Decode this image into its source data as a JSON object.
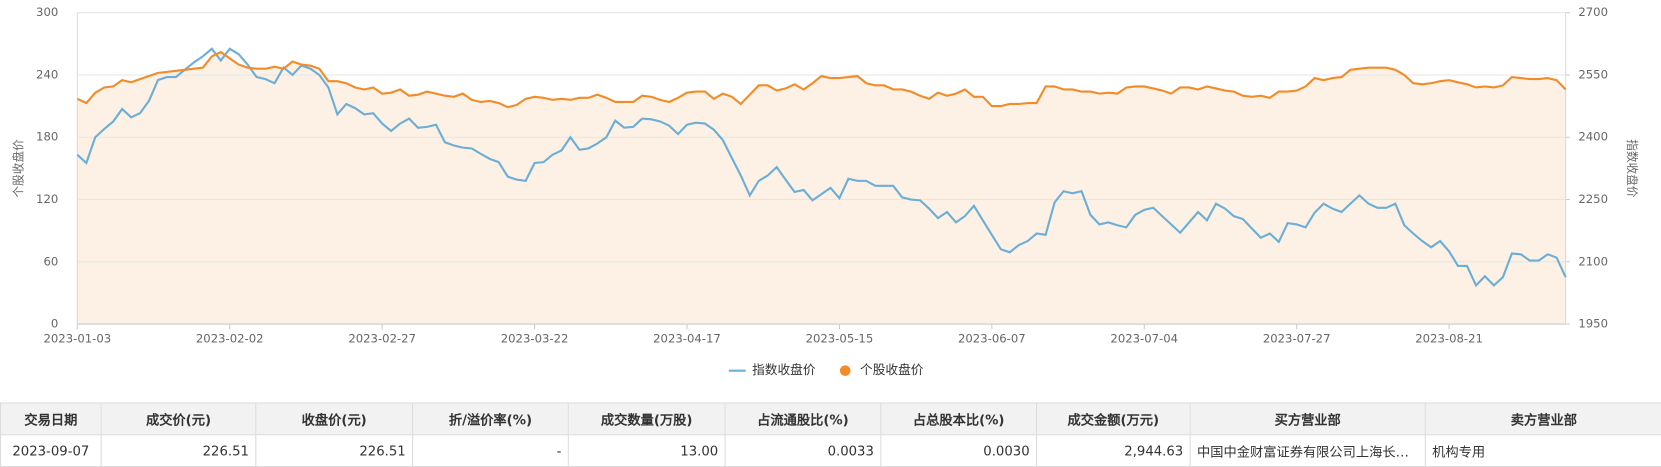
{
  "chart_data": {
    "type": "line",
    "ylabel": "个股收盘价",
    "y2label": "指数收盘价",
    "categories": [
      "2023-01-03",
      null,
      null,
      null,
      null,
      null,
      null,
      null,
      null,
      null,
      null,
      null,
      null,
      null,
      null,
      null,
      null,
      "2023-02-02",
      null,
      null,
      null,
      null,
      null,
      null,
      null,
      null,
      null,
      null,
      null,
      null,
      null,
      null,
      null,
      null,
      "2023-02-27",
      null,
      null,
      null,
      null,
      null,
      null,
      null,
      null,
      null,
      null,
      null,
      null,
      null,
      null,
      null,
      null,
      "2023-03-22",
      null,
      null,
      null,
      null,
      null,
      null,
      null,
      null,
      null,
      null,
      null,
      null,
      null,
      null,
      null,
      null,
      "2023-04-17",
      null,
      null,
      null,
      null,
      null,
      null,
      null,
      null,
      null,
      null,
      null,
      null,
      null,
      null,
      null,
      null,
      "2023-05-15",
      null,
      null,
      null,
      null,
      null,
      null,
      null,
      null,
      null,
      null,
      null,
      null,
      null,
      null,
      null,
      null,
      "2023-06-07",
      null,
      null,
      null,
      null,
      null,
      null,
      null,
      null,
      null,
      null,
      null,
      null,
      null,
      null,
      null,
      null,
      "2023-07-04",
      null,
      null,
      null,
      null,
      null,
      null,
      null,
      null,
      null,
      null,
      null,
      null,
      null,
      null,
      null,
      null,
      "2023-07-27",
      null,
      null,
      null,
      null,
      null,
      null,
      null,
      null,
      null,
      null,
      null,
      null,
      null,
      null,
      null,
      null,
      "2023-08-21",
      null,
      null,
      null,
      null,
      null,
      null,
      null,
      null,
      null,
      null,
      null,
      null,
      null
    ],
    "series": [
      {
        "name": "指数收盘价",
        "color": "#6baed6",
        "axis": "y2",
        "values": [
          2358,
          2338,
          2400,
          2420,
          2438,
          2468,
          2448,
          2458,
          2488,
          2538,
          2545,
          2545,
          2563,
          2580,
          2595,
          2613,
          2585,
          2613,
          2600,
          2575,
          2545,
          2540,
          2530,
          2568,
          2550,
          2573,
          2565,
          2550,
          2520,
          2455,
          2480,
          2470,
          2455,
          2458,
          2433,
          2415,
          2433,
          2445,
          2423,
          2425,
          2430,
          2388,
          2380,
          2375,
          2373,
          2360,
          2348,
          2340,
          2305,
          2298,
          2295,
          2338,
          2340,
          2358,
          2368,
          2400,
          2370,
          2373,
          2385,
          2400,
          2440,
          2423,
          2425,
          2445,
          2443,
          2438,
          2428,
          2408,
          2430,
          2435,
          2433,
          2418,
          2393,
          2350,
          2308,
          2260,
          2295,
          2308,
          2328,
          2298,
          2268,
          2273,
          2248,
          2263,
          2278,
          2253,
          2300,
          2295,
          2295,
          2283,
          2283,
          2283,
          2255,
          2250,
          2248,
          2228,
          2205,
          2220,
          2195,
          2210,
          2235,
          2200,
          2165,
          2130,
          2123,
          2140,
          2150,
          2168,
          2165,
          2243,
          2270,
          2265,
          2270,
          2213,
          2190,
          2195,
          2188,
          2183,
          2213,
          2225,
          2230,
          2210,
          2190,
          2170,
          2195,
          2220,
          2200,
          2240,
          2228,
          2210,
          2203,
          2180,
          2158,
          2168,
          2148,
          2193,
          2190,
          2183,
          2218,
          2240,
          2228,
          2220,
          2240,
          2260,
          2240,
          2230,
          2230,
          2240,
          2188,
          2168,
          2150,
          2135,
          2150,
          2125,
          2090,
          2090,
          2043,
          2065,
          2043,
          2063,
          2120,
          2118,
          2103,
          2103,
          2118,
          2110,
          2063
        ]
      },
      {
        "name": "个股收盘价",
        "color": "#f28c28",
        "area": true,
        "values": [
          217,
          213,
          223,
          228,
          229,
          235,
          233,
          236,
          239,
          242,
          243,
          244,
          245,
          246,
          247,
          258,
          262,
          256,
          250,
          247,
          246,
          246,
          248,
          246,
          253,
          250,
          249,
          246,
          234,
          234,
          232,
          228,
          226,
          228,
          222,
          223,
          226,
          220,
          221,
          224,
          222,
          220,
          219,
          222,
          216,
          214,
          215,
          213,
          209,
          211,
          217,
          219,
          218,
          216,
          217,
          216,
          218,
          218,
          221,
          218,
          214,
          214,
          214,
          220,
          219,
          216,
          214,
          218,
          223,
          224,
          224,
          217,
          222,
          219,
          212,
          221,
          230,
          230,
          225,
          227,
          231,
          226,
          232,
          239,
          237,
          237,
          238,
          239,
          232,
          230,
          230,
          226,
          226,
          224,
          220,
          217,
          223,
          220,
          222,
          226,
          219,
          219,
          210,
          210,
          212,
          212,
          213,
          213,
          229,
          229,
          226,
          226,
          224,
          224,
          222,
          223,
          222,
          228,
          229,
          229,
          227,
          225,
          222,
          228,
          228,
          226,
          229,
          227,
          225,
          224,
          220,
          219,
          220,
          218,
          224,
          224,
          225,
          229,
          237,
          235,
          237,
          238,
          245,
          246,
          247,
          247,
          247,
          245,
          240,
          232,
          231,
          232,
          234,
          235,
          233,
          231,
          228,
          229,
          228,
          230,
          238,
          237,
          236,
          236,
          237,
          235,
          226
        ]
      }
    ],
    "ylim": [
      0,
      300
    ],
    "yticks": [
      0,
      60,
      120,
      180,
      240,
      300
    ],
    "y2lim": [
      1950,
      2700
    ],
    "y2ticks": [
      1950,
      2100,
      2250,
      2400,
      2550,
      2700
    ],
    "grid": true,
    "legend": "bottom"
  },
  "table": {
    "headers": [
      "交易日期",
      "成交价(元)",
      "收盘价(元)",
      "折/溢价率(%)",
      "成交数量(万股)",
      "占流通股比(%)",
      "占总股本比(%)",
      "成交金额(万元)",
      "买方营业部",
      "卖方营业部"
    ],
    "rows": [
      [
        "2023-09-07",
        "226.51",
        "226.51",
        "-",
        "13.00",
        "0.0033",
        "0.0030",
        "2,944.63",
        "中国中金财富证券有限公司上海长…",
        "机构专用"
      ]
    ]
  }
}
